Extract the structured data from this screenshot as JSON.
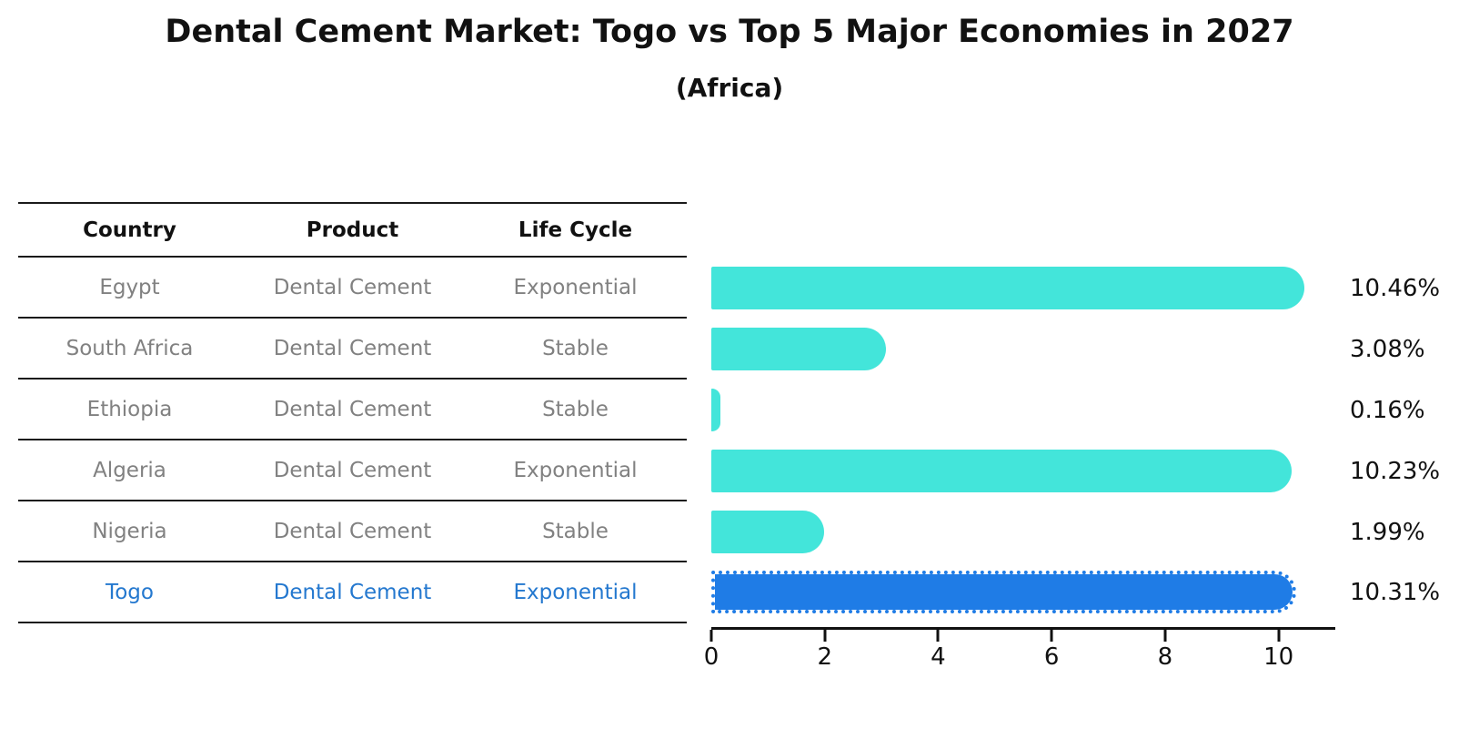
{
  "title": "Dental Cement Market: Togo vs Top 5 Major Economies in 2027",
  "subtitle": "(Africa)",
  "table": {
    "headers": {
      "country": "Country",
      "product": "Product",
      "life_cycle": "Life Cycle"
    },
    "rows": [
      {
        "country": "Egypt",
        "product": "Dental Cement",
        "life_cycle": "Exponential",
        "highlight": false
      },
      {
        "country": "South Africa",
        "product": "Dental Cement",
        "life_cycle": "Stable",
        "highlight": false
      },
      {
        "country": "Ethiopia",
        "product": "Dental Cement",
        "life_cycle": "Stable",
        "highlight": false
      },
      {
        "country": "Algeria",
        "product": "Dental Cement",
        "life_cycle": "Exponential",
        "highlight": false
      },
      {
        "country": "Nigeria",
        "product": "Dental Cement",
        "life_cycle": "Stable",
        "highlight": false
      },
      {
        "country": "Togo",
        "product": "Dental Cement",
        "life_cycle": "Exponential",
        "highlight": true
      }
    ]
  },
  "chart_data": {
    "type": "bar",
    "orientation": "horizontal",
    "title": "Dental Cement Market: Togo vs Top 5 Major Economies in 2027",
    "subtitle": "(Africa)",
    "categories": [
      "Egypt",
      "South Africa",
      "Ethiopia",
      "Algeria",
      "Nigeria",
      "Togo"
    ],
    "values": [
      10.46,
      3.08,
      0.16,
      10.23,
      1.99,
      10.31
    ],
    "labels": [
      "10.46%",
      "3.08%",
      "0.16%",
      "10.23%",
      "1.99%",
      "10.31%"
    ],
    "unit": "%",
    "xlim": [
      0,
      11
    ],
    "xticks": [
      0,
      2,
      4,
      6,
      8,
      10
    ],
    "grid": false,
    "legend": "none",
    "highlight_index": 5,
    "bar_color": "#43e5da",
    "highlight_color": "#1f7ce6",
    "highlight_text_color": "#2478cf"
  },
  "colors": {
    "background": "#ffffff",
    "text_primary": "#111111",
    "text_muted": "#818181",
    "table_line": "#1a1a1a"
  }
}
